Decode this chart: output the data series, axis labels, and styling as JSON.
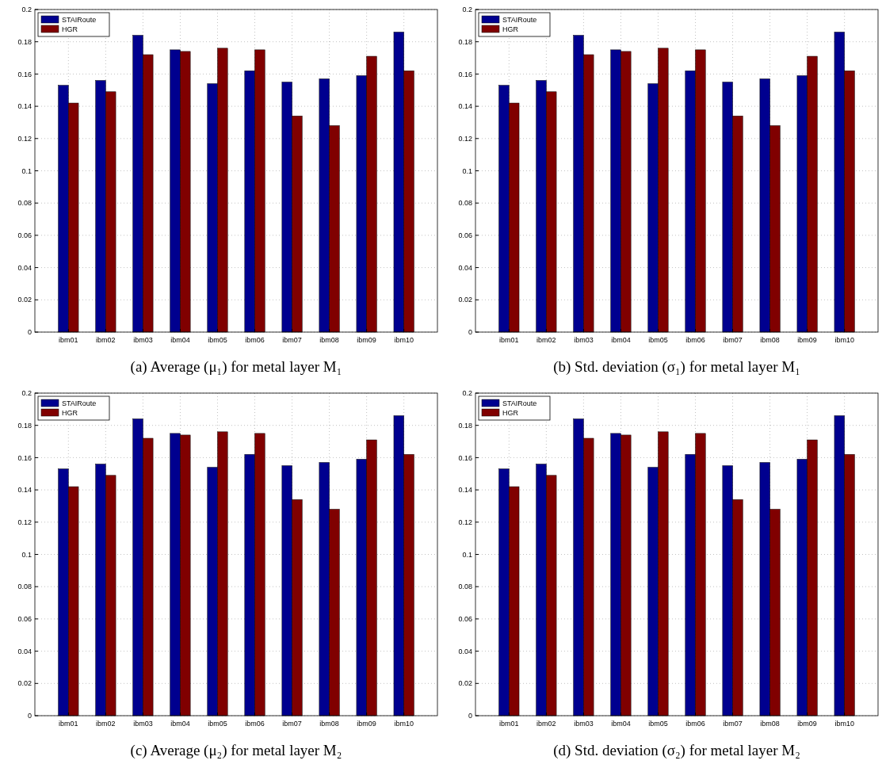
{
  "chart_data": [
    {
      "type": "bar",
      "title": "(a) Average (μ₁) for metal layer M₁",
      "categories": [
        "ibm01",
        "ibm02",
        "ibm03",
        "ibm04",
        "ibm05",
        "ibm06",
        "ibm07",
        "ibm08",
        "ibm09",
        "ibm10"
      ],
      "series": [
        {
          "name": "STAIRoute",
          "color": "#00008f",
          "values": [
            0.153,
            0.156,
            0.184,
            0.175,
            0.154,
            0.162,
            0.155,
            0.157,
            0.159,
            0.186
          ]
        },
        {
          "name": "HGR",
          "color": "#800000",
          "values": [
            0.142,
            0.149,
            0.172,
            0.174,
            0.176,
            0.175,
            0.134,
            0.128,
            0.171,
            0.162
          ]
        }
      ],
      "ylim": [
        0,
        0.2
      ],
      "yticks": [
        0,
        0.02,
        0.04,
        0.06,
        0.08,
        0.1,
        0.12,
        0.14,
        0.16,
        0.18,
        0.2
      ],
      "grid": true,
      "legend": "top left"
    },
    {
      "type": "bar",
      "title": "(b) Std. deviation (σ₁) for metal layer M₁",
      "categories": [
        "ibm01",
        "ibm02",
        "ibm03",
        "ibm04",
        "ibm05",
        "ibm06",
        "ibm07",
        "ibm08",
        "ibm09",
        "ibm10"
      ],
      "series": [
        {
          "name": "STAIRoute",
          "color": "#00008f",
          "values": [
            0.153,
            0.156,
            0.184,
            0.175,
            0.154,
            0.162,
            0.155,
            0.157,
            0.159,
            0.186
          ]
        },
        {
          "name": "HGR",
          "color": "#800000",
          "values": [
            0.142,
            0.149,
            0.172,
            0.174,
            0.176,
            0.175,
            0.134,
            0.128,
            0.171,
            0.162
          ]
        }
      ],
      "ylim": [
        0,
        0.2
      ],
      "yticks": [
        0,
        0.02,
        0.04,
        0.06,
        0.08,
        0.1,
        0.12,
        0.14,
        0.16,
        0.18,
        0.2
      ],
      "grid": true,
      "legend": "top left"
    },
    {
      "type": "bar",
      "title": "(c) Average (μ₂) for metal layer M₂",
      "categories": [
        "ibm01",
        "ibm02",
        "ibm03",
        "ibm04",
        "ibm05",
        "ibm06",
        "ibm07",
        "ibm08",
        "ibm09",
        "ibm10"
      ],
      "series": [
        {
          "name": "STAIRoute",
          "color": "#00008f",
          "values": [
            0.153,
            0.156,
            0.184,
            0.175,
            0.154,
            0.162,
            0.155,
            0.157,
            0.159,
            0.186
          ]
        },
        {
          "name": "HGR",
          "color": "#800000",
          "values": [
            0.142,
            0.149,
            0.172,
            0.174,
            0.176,
            0.175,
            0.134,
            0.128,
            0.171,
            0.162
          ]
        }
      ],
      "ylim": [
        0,
        0.2
      ],
      "yticks": [
        0,
        0.02,
        0.04,
        0.06,
        0.08,
        0.1,
        0.12,
        0.14,
        0.16,
        0.18,
        0.2
      ],
      "grid": true,
      "legend": "top left"
    },
    {
      "type": "bar",
      "title": "(d) Std. deviation (σ₂) for metal layer M₂",
      "categories": [
        "ibm01",
        "ibm02",
        "ibm03",
        "ibm04",
        "ibm05",
        "ibm06",
        "ibm07",
        "ibm08",
        "ibm09",
        "ibm10"
      ],
      "series": [
        {
          "name": "STAIRoute",
          "color": "#00008f",
          "values": [
            0.153,
            0.156,
            0.184,
            0.175,
            0.154,
            0.162,
            0.155,
            0.157,
            0.159,
            0.186
          ]
        },
        {
          "name": "HGR",
          "color": "#800000",
          "values": [
            0.142,
            0.149,
            0.172,
            0.174,
            0.176,
            0.175,
            0.134,
            0.128,
            0.171,
            0.162
          ]
        }
      ],
      "ylim": [
        0,
        0.2
      ],
      "yticks": [
        0,
        0.02,
        0.04,
        0.06,
        0.08,
        0.1,
        0.12,
        0.14,
        0.16,
        0.18,
        0.2
      ],
      "grid": true,
      "legend": "top left"
    }
  ]
}
